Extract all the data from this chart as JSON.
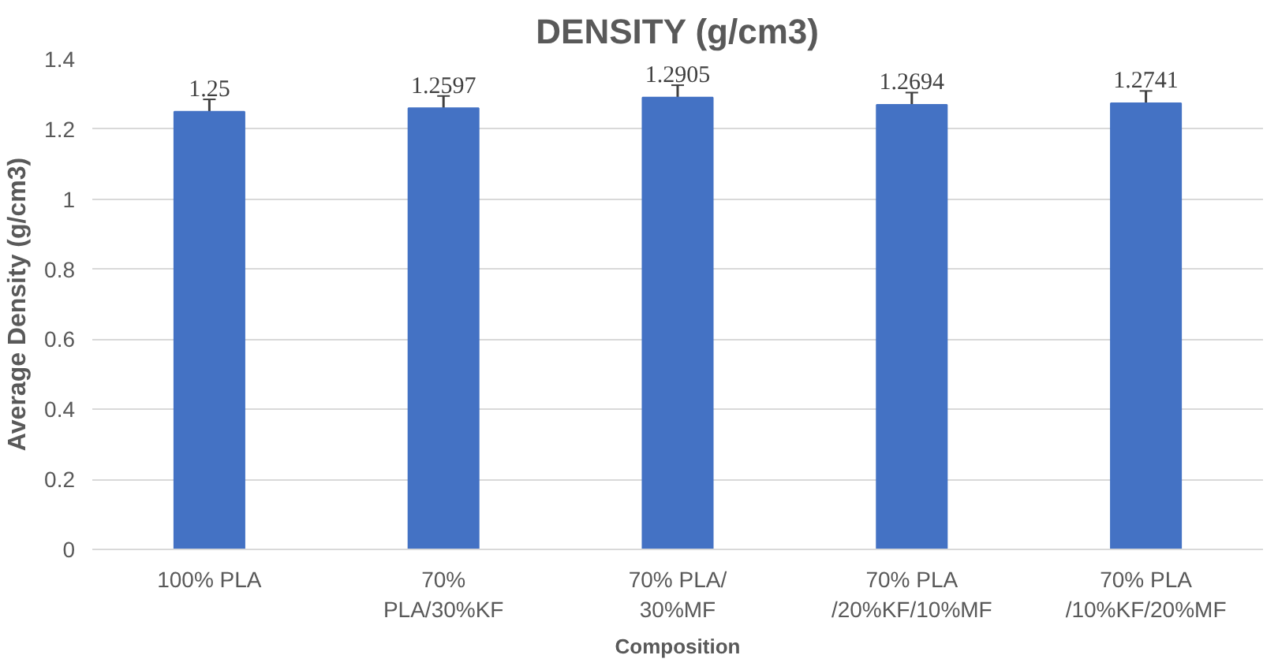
{
  "chart_data": {
    "type": "bar",
    "title": "DENSITY (g/cm3)",
    "xlabel": "Composition",
    "ylabel": "Average Density (g/cm3)",
    "categories": [
      "100% PLA",
      "70%\nPLA/30%KF",
      "70% PLA/\n30%MF",
      "70% PLA\n/20%KF/10%MF",
      "70% PLA\n/10%KF/20%MF"
    ],
    "values": [
      1.25,
      1.2597,
      1.2905,
      1.2694,
      1.2741
    ],
    "errors": [
      0.035,
      0.035,
      0.035,
      0.035,
      0.035
    ],
    "color": "#4472c4",
    "ylim": [
      0,
      1.4
    ],
    "yticks": [
      0,
      0.2,
      0.4,
      0.6,
      0.8,
      1,
      1.2,
      1.4
    ],
    "grid": "y",
    "data_labels": true
  }
}
